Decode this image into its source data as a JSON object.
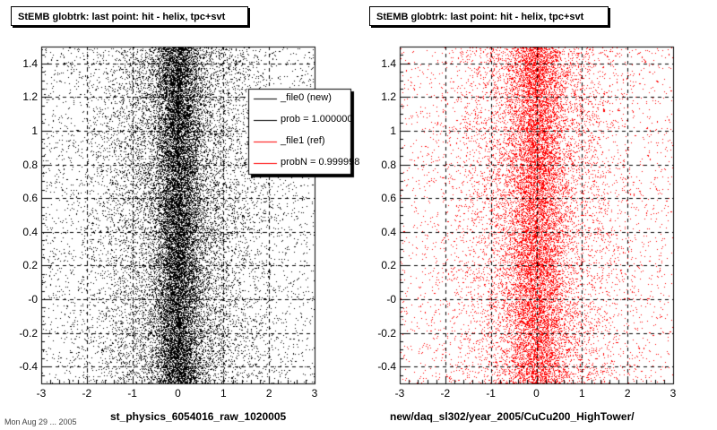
{
  "footer_text": "Mon Aug 29 ... 2005",
  "chart_data": [
    {
      "type": "scatter",
      "title": "StEMB globtrk: last point: hit - helix, tpc+svt",
      "xlabel": "st_physics_6054016_raw_1020005",
      "ylabel": "",
      "xlim": [
        -3,
        3
      ],
      "ylim": [
        -0.5,
        1.5
      ],
      "xticks": [
        "-3",
        "-2",
        "-1",
        "0",
        "1",
        "2",
        "3"
      ],
      "yticks": [
        "-0.4",
        "-0.2",
        "-0",
        "0.2",
        "0.4",
        "0.6",
        "0.8",
        "1",
        "1.2",
        "1.4"
      ],
      "grid": true,
      "marker_color": "#000000",
      "distribution": {
        "center_x": 0.0,
        "core_sigma_x": 0.25,
        "halo_sigma_x": 0.9,
        "background": "uniform",
        "points": 26000
      },
      "legend": {
        "placement": "top-right",
        "entries": [
          {
            "label": "_file0 (new)",
            "color": "#000000"
          },
          {
            "label": "prob = 1.000000",
            "color": "#000000"
          },
          {
            "label": "_file1 (ref)",
            "color": "#ff0000"
          },
          {
            "label": "probN = 0.999998",
            "color": "#ff0000"
          }
        ]
      }
    },
    {
      "type": "scatter",
      "title": "StEMB globtrk: last point: hit - helix, tpc+svt",
      "xlabel": "new/daq_sl302/year_2005/CuCu200_HighTower/",
      "ylabel": "",
      "xlim": [
        -3,
        3
      ],
      "ylim": [
        -0.5,
        1.5
      ],
      "xticks": [
        "-3",
        "-2",
        "-1",
        "0",
        "1",
        "2",
        "3"
      ],
      "yticks": [
        "-0.4",
        "-0.2",
        "-0",
        "0.2",
        "0.4",
        "0.6",
        "0.8",
        "1",
        "1.2",
        "1.4"
      ],
      "grid": true,
      "marker_color": "#ff0000",
      "distribution": {
        "center_x": 0.0,
        "core_sigma_x": 0.3,
        "halo_sigma_x": 0.9,
        "background": "uniform",
        "points": 18000
      }
    }
  ]
}
